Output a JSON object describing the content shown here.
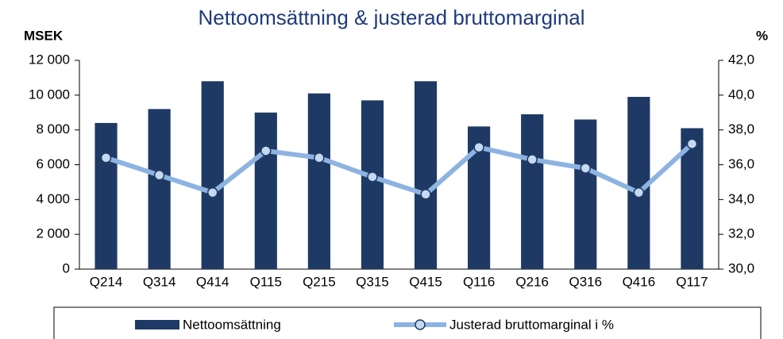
{
  "chart_data": {
    "type": "bar",
    "title": "Nettoomsättning  & justerad bruttomarginal",
    "y_label": "MSEK",
    "y2_label": "%",
    "categories": [
      "Q214",
      "Q314",
      "Q414",
      "Q115",
      "Q215",
      "Q315",
      "Q415",
      "Q116",
      "Q216",
      "Q316",
      "Q416",
      "Q117"
    ],
    "series": [
      {
        "name": "Nettoomsättning",
        "type": "bar",
        "color": "#1e3a64",
        "values": [
          8400,
          9200,
          10800,
          9000,
          10100,
          9700,
          10800,
          8200,
          8900,
          8600,
          9900,
          8100
        ]
      },
      {
        "name": "Justerad bruttomarginal i %",
        "type": "line",
        "axis": "y2",
        "color": "#8db3e2",
        "marker_edge": "#1e3a64",
        "values": [
          36.4,
          35.4,
          34.4,
          36.8,
          36.4,
          35.3,
          34.3,
          37.0,
          36.3,
          35.8,
          34.4,
          37.2
        ]
      }
    ],
    "ylim": [
      0,
      12000
    ],
    "yticks": [
      0,
      {
        "value": 2000,
        "label": "2 000"
      },
      {
        "value": 4000,
        "label": "4 000"
      },
      {
        "value": 6000,
        "label": "6 000"
      },
      {
        "value": 8000,
        "label": "8 000"
      },
      {
        "value": 10000,
        "label": "10 000"
      },
      {
        "value": 12000,
        "label": "12 000"
      }
    ],
    "y2lim": [
      30,
      42
    ],
    "y2ticks": [
      {
        "value": 30,
        "label": "30,0"
      },
      {
        "value": 32,
        "label": "32,0"
      },
      {
        "value": 34,
        "label": "34,0"
      },
      {
        "value": 36,
        "label": "36,0"
      },
      {
        "value": 38,
        "label": "38,0"
      },
      {
        "value": 40,
        "label": "40,0"
      },
      {
        "value": 42,
        "label": "42,0"
      }
    ],
    "legend": "bottom",
    "grid": false
  }
}
